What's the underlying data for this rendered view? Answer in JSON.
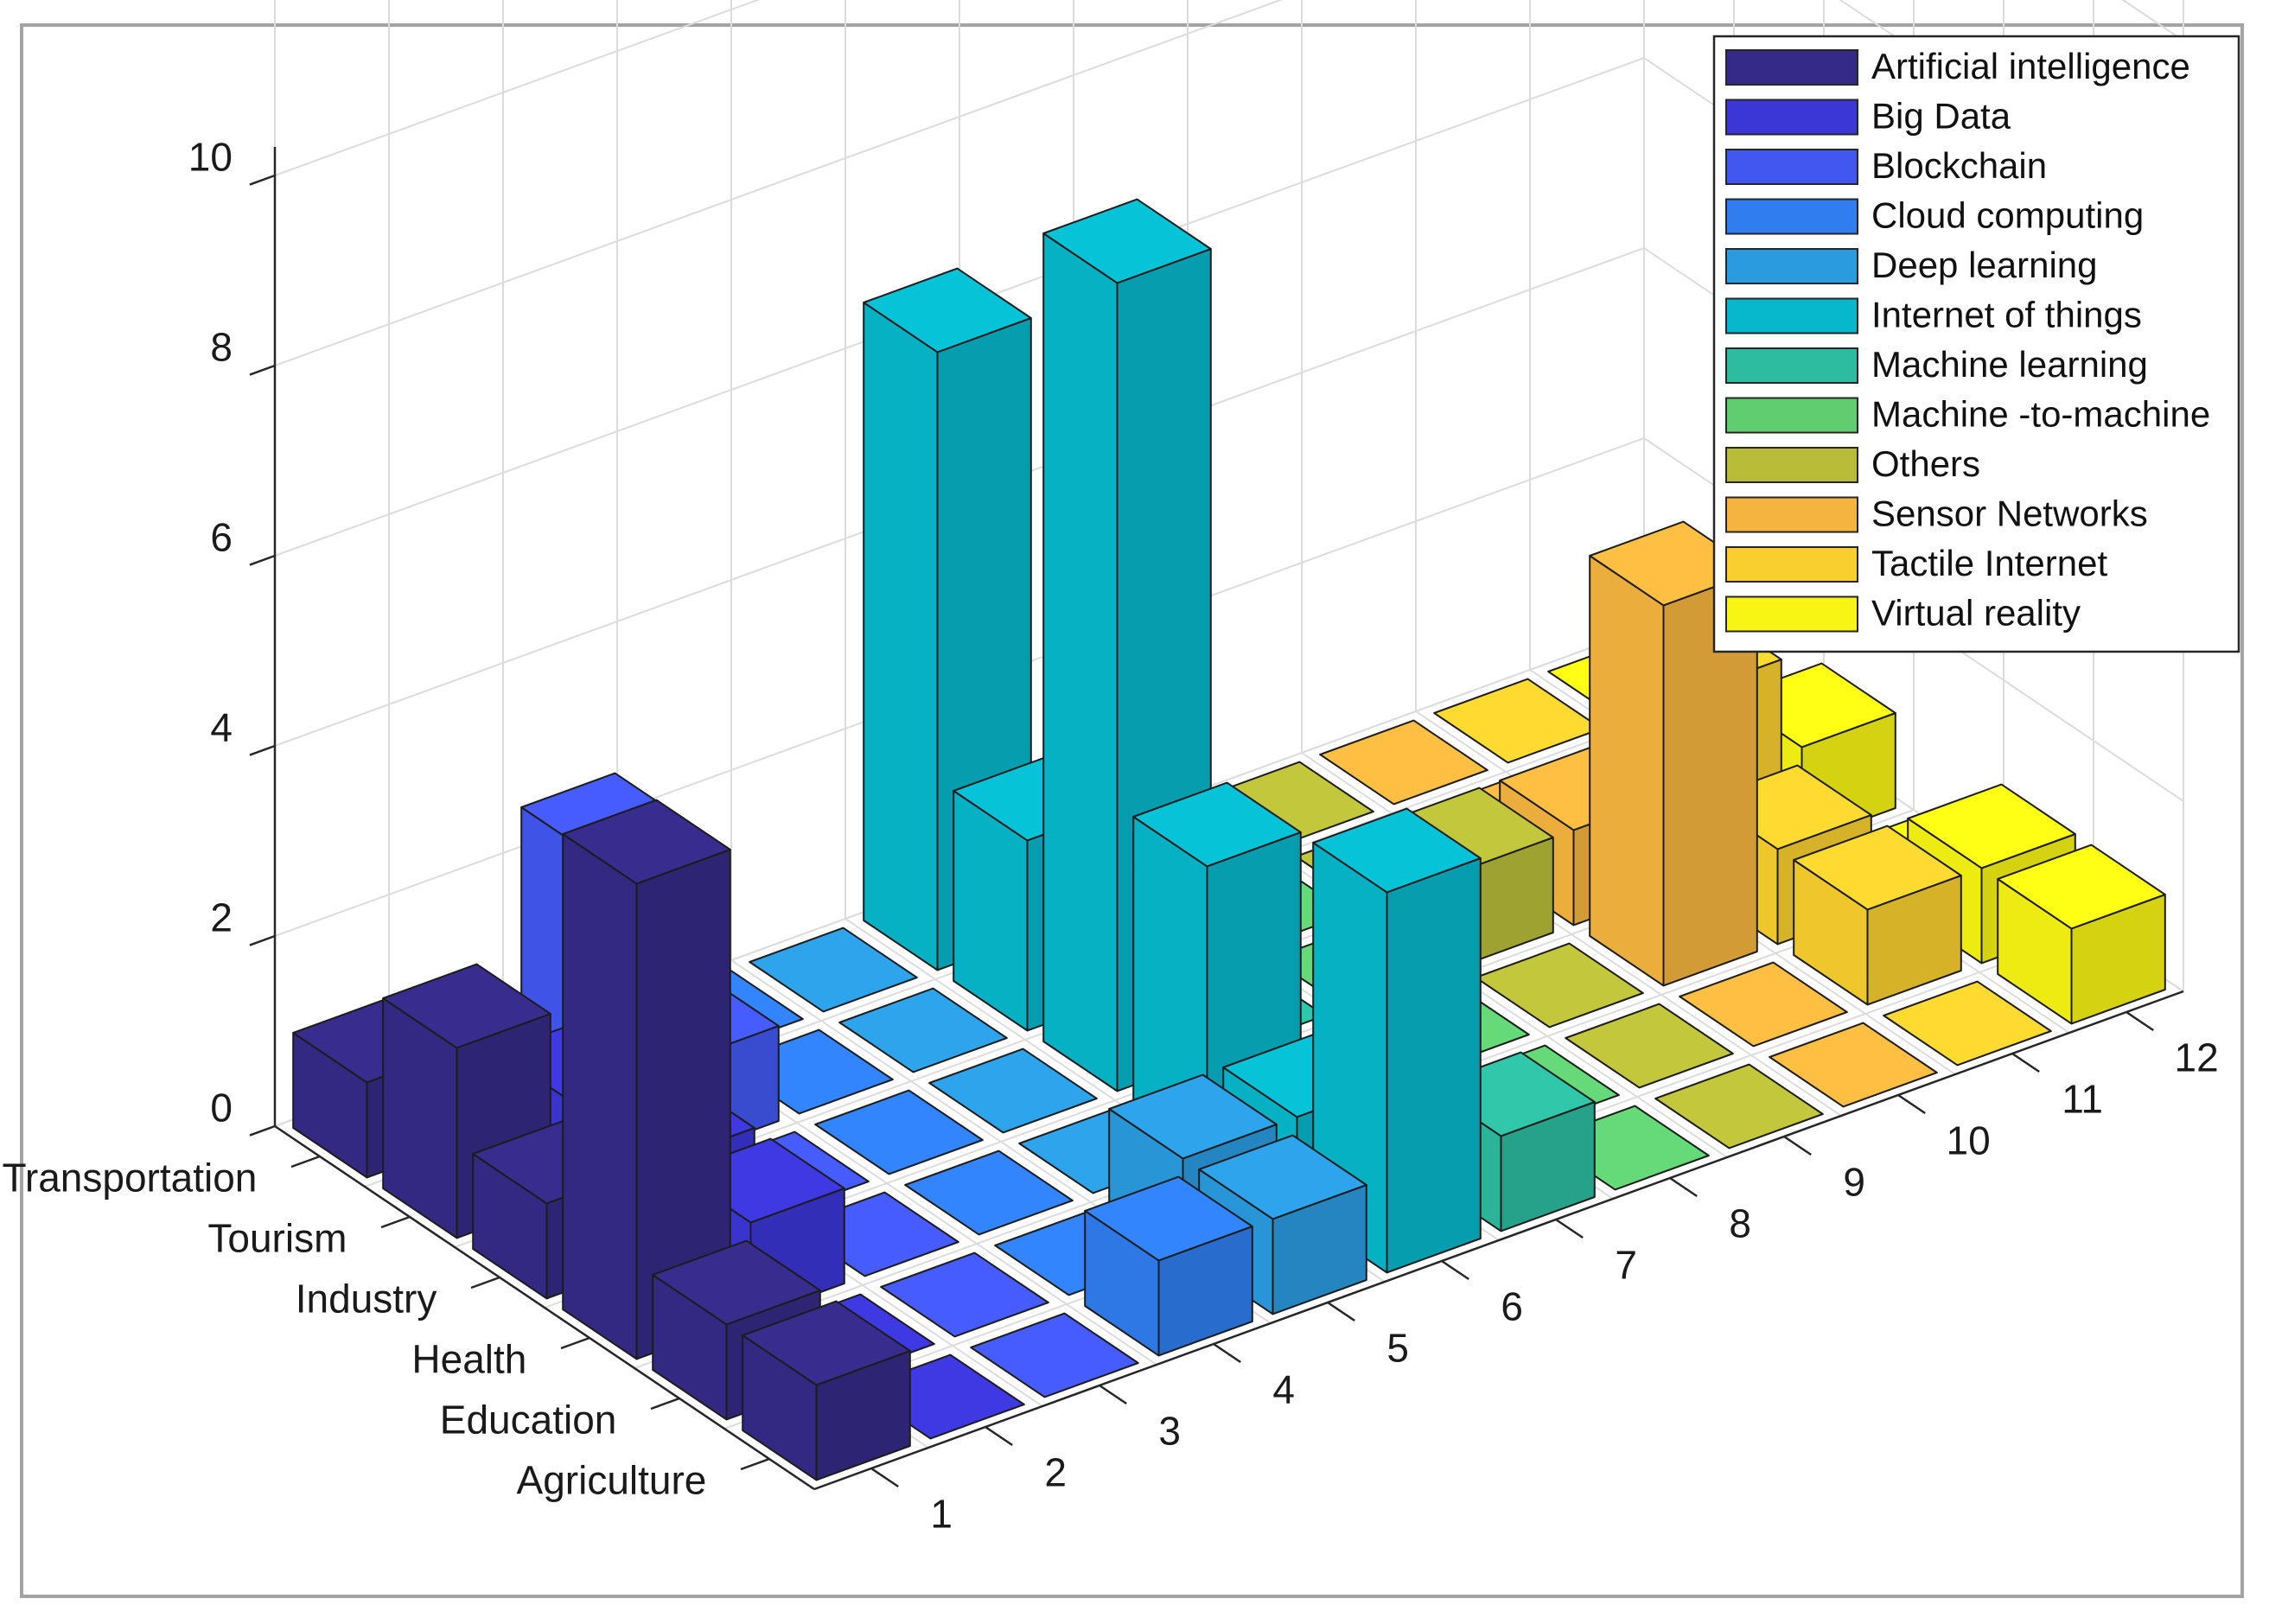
{
  "chart_data": {
    "type": "bar3d",
    "title": "",
    "categories": [
      "Agriculture",
      "Education",
      "Health",
      "Industry",
      "Tourism",
      "Transportation"
    ],
    "x_ticks": [
      "1",
      "2",
      "3",
      "4",
      "5",
      "6",
      "7",
      "8",
      "9",
      "10",
      "11",
      "12"
    ],
    "zlim": [
      0,
      10
    ],
    "z_ticks": [
      "0",
      "2",
      "4",
      "6",
      "8",
      "10"
    ],
    "grid": true,
    "legend_position": "top-right",
    "series": [
      {
        "name": "Artificial intelligence",
        "color": "#352A87",
        "values": [
          1,
          1,
          5,
          1,
          2,
          1
        ]
      },
      {
        "name": "Big Data",
        "color": "#3B36D6",
        "values": [
          0,
          0,
          1,
          1,
          1,
          0
        ]
      },
      {
        "name": "Blockchain",
        "color": "#4257F0",
        "values": [
          0,
          0,
          0,
          0,
          1,
          2.5
        ]
      },
      {
        "name": "Cloud computing",
        "color": "#2F7DEF",
        "values": [
          1,
          0,
          0,
          0,
          0,
          0
        ]
      },
      {
        "name": "Deep learning",
        "color": "#2A9BDF",
        "values": [
          1,
          1,
          0,
          0,
          0,
          0
        ]
      },
      {
        "name": "Internet of things",
        "color": "#07B8CC",
        "values": [
          4,
          1,
          3,
          8.5,
          2,
          6.5
        ]
      },
      {
        "name": "Machine learning",
        "color": "#2DBCA0",
        "values": [
          1,
          0,
          0,
          0,
          0,
          1
        ]
      },
      {
        "name": "Machine -to-machine",
        "color": "#60CD71",
        "values": [
          0,
          0,
          0,
          0,
          0,
          0
        ]
      },
      {
        "name": "Others",
        "color": "#B8BC38",
        "values": [
          0,
          0,
          0,
          1,
          0,
          0
        ]
      },
      {
        "name": "Sensor Networks",
        "color": "#F5B43F",
        "values": [
          0,
          0,
          4,
          1,
          0,
          0
        ]
      },
      {
        "name": "Tactile Internet",
        "color": "#F9CF2F",
        "values": [
          0,
          1,
          1,
          2,
          0,
          0
        ]
      },
      {
        "name": "Virtual reality",
        "color": "#F8F514",
        "values": [
          1,
          1,
          0,
          1,
          0,
          0
        ]
      }
    ]
  }
}
